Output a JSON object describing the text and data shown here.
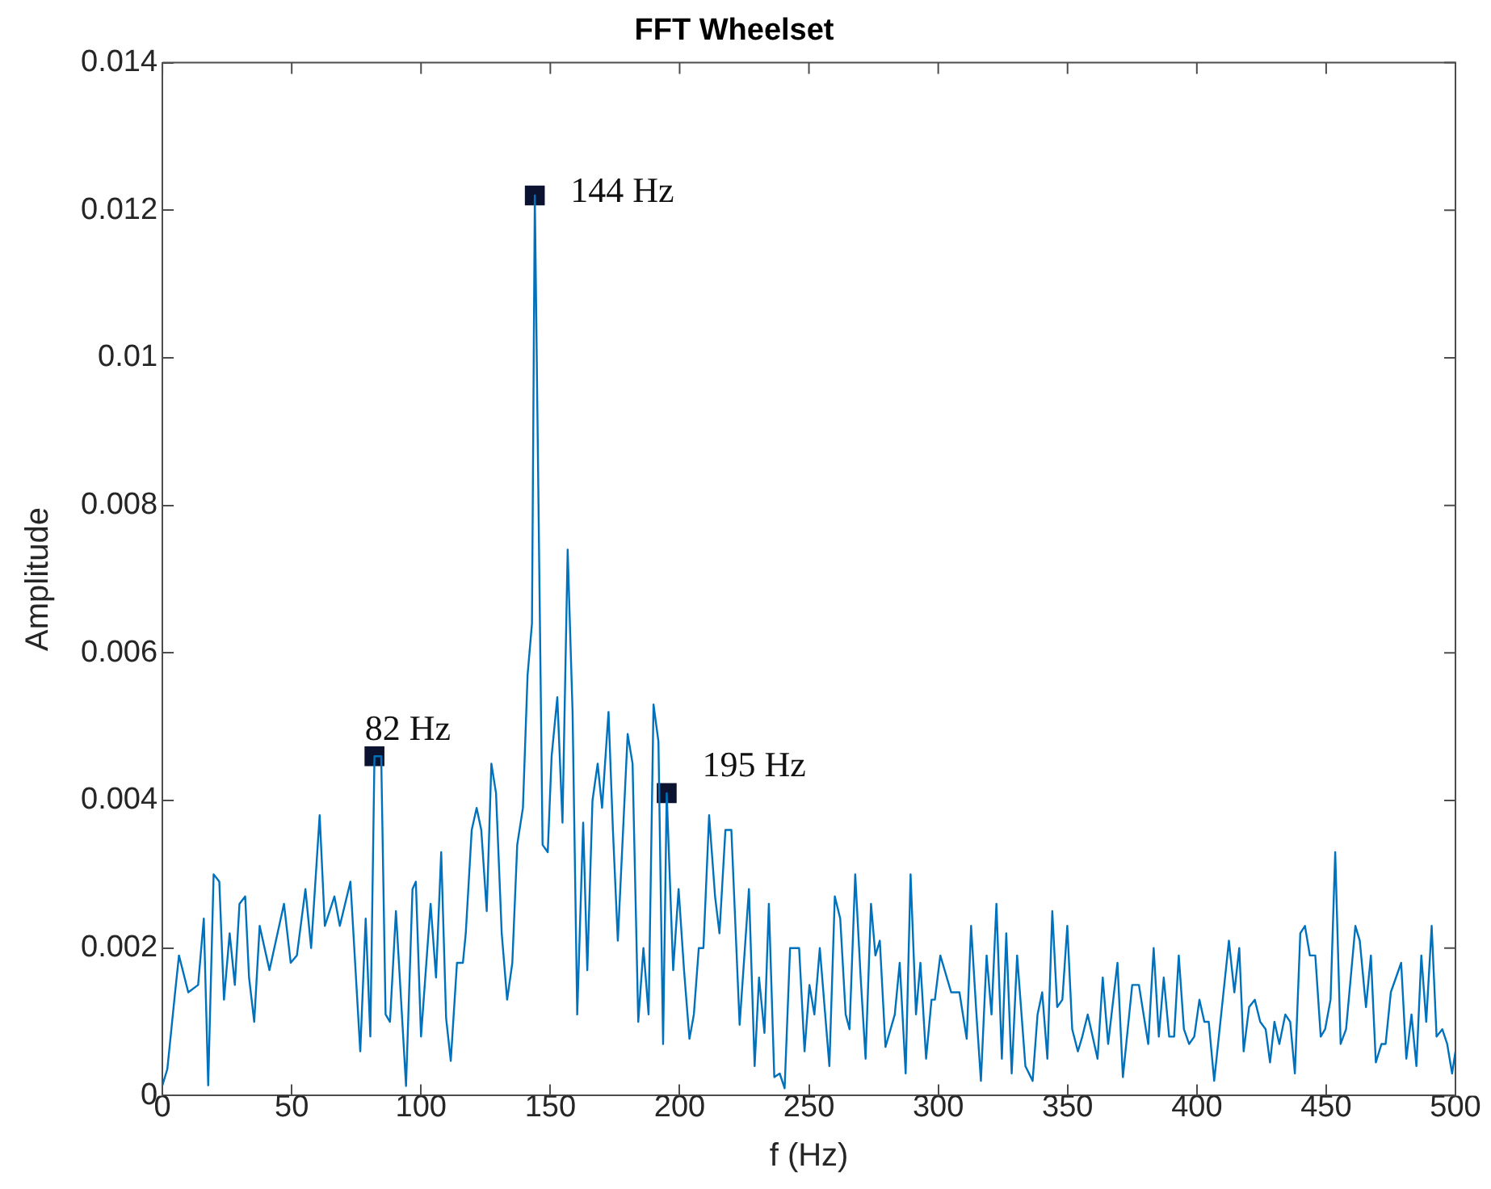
{
  "chart_data": {
    "type": "line",
    "title": "FFT Wheelset",
    "xlabel": "f (Hz)",
    "ylabel": "Amplitude",
    "xlim": [
      0,
      500
    ],
    "xticks": [
      0,
      50,
      100,
      150,
      200,
      250,
      300,
      350,
      400,
      450,
      500
    ],
    "ylim": [
      0,
      0.014
    ],
    "yticks": [
      0,
      0.002,
      0.004,
      0.006,
      0.008,
      0.01,
      0.012,
      0.014
    ],
    "grid": false,
    "legend": false,
    "series": [
      {
        "type": "line",
        "marker": "none",
        "color": "#0072bd",
        "x": [
          0,
          1.9,
          4.9,
          6.4,
          10,
          13.8,
          16,
          17.7,
          19.8,
          22,
          23.8,
          26,
          28,
          29.8,
          32,
          33.5,
          35.5,
          37.6,
          41.4,
          47,
          49.6,
          52,
          55.3,
          57.5,
          60.8,
          62.8,
          66.5,
          68.6,
          72.7,
          76.5,
          78.6,
          80.4,
          82,
          84.6,
          86.3,
          88,
          90.3,
          94.2,
          96.7,
          98,
          100,
          103.7,
          105.8,
          107.8,
          109.7,
          111.5,
          113.9,
          116.2,
          117.3,
          119.6,
          121.5,
          123.3,
          125.4,
          127.2,
          129,
          131.2,
          133.3,
          135.3,
          137.2,
          139.4,
          141.2,
          142.9,
          144,
          147,
          149,
          150.5,
          152.7,
          154.7,
          156.7,
          158.6,
          160.4,
          162.7,
          164.3,
          166.3,
          168.3,
          170,
          172.5,
          174.2,
          176.1,
          179.9,
          181.8,
          184,
          186,
          188,
          189.9,
          191.8,
          193.6,
          195,
          197.5,
          199.6,
          201.7,
          203.8,
          205.5,
          207.4,
          209.2,
          211.4,
          213.7,
          215.4,
          217.7,
          220,
          223.2,
          226.8,
          229,
          230.7,
          232.8,
          234.5,
          236.6,
          238.7,
          240.6,
          242.7,
          246.2,
          248.3,
          250.2,
          252.1,
          254.2,
          257.9,
          260,
          262.1,
          264.2,
          265.7,
          267.9,
          270,
          271.9,
          274,
          275.7,
          277.4,
          279.6,
          283.2,
          285.1,
          287.4,
          289.3,
          291.4,
          293.1,
          295.3,
          297.4,
          298.7,
          300.8,
          305,
          308.2,
          311,
          312.7,
          314.6,
          316.5,
          318.7,
          320.6,
          322.5,
          324.6,
          326.3,
          328.4,
          330.5,
          333.7,
          336.5,
          338.4,
          340.2,
          342.2,
          344.1,
          346,
          348,
          349.9,
          351.8,
          354,
          355.7,
          357.8,
          361.6,
          363.6,
          365.7,
          369.3,
          371.4,
          375,
          377.6,
          381.2,
          383.3,
          385.3,
          387.2,
          389.3,
          391.2,
          393,
          395,
          397,
          399,
          401,
          402.9,
          404.6,
          406.7,
          412.4,
          414.5,
          416.4,
          418.1,
          420.2,
          422.4,
          424.5,
          426.6,
          428.3,
          430,
          431.9,
          434.2,
          436.1,
          437.9,
          440,
          441.8,
          443.7,
          445.8,
          447.9,
          449.6,
          451.7,
          453.5,
          455.6,
          457.7,
          461.3,
          463,
          465.4,
          467.3,
          469.2,
          471.4,
          473,
          475,
          479,
          481,
          483,
          484.9,
          486.8,
          488.7,
          490.8,
          492.7,
          494.9,
          496.8,
          498.7,
          500
        ],
        "values": [
          0.00014,
          0.00036,
          0.0014,
          0.0019,
          0.0014,
          0.0015,
          0.0024,
          0.00014,
          0.003,
          0.0029,
          0.0013,
          0.0022,
          0.0015,
          0.0026,
          0.0027,
          0.0016,
          0.001,
          0.0023,
          0.0017,
          0.0026,
          0.0018,
          0.0019,
          0.0028,
          0.002,
          0.0038,
          0.0023,
          0.0027,
          0.0023,
          0.0029,
          0.0006,
          0.0024,
          0.0008,
          0.0046,
          0.0046,
          0.0011,
          0.001,
          0.0025,
          0.00013,
          0.0028,
          0.0029,
          0.0008,
          0.0026,
          0.0016,
          0.0033,
          0.00105,
          0.00047,
          0.0018,
          0.0018,
          0.0022,
          0.0036,
          0.0039,
          0.0036,
          0.0025,
          0.0045,
          0.0041,
          0.0022,
          0.0013,
          0.0018,
          0.0034,
          0.0039,
          0.0057,
          0.0064,
          0.0122,
          0.0034,
          0.0033,
          0.0046,
          0.0054,
          0.0037,
          0.0074,
          0.0052,
          0.0011,
          0.0037,
          0.0017,
          0.004,
          0.0045,
          0.0039,
          0.0052,
          0.0036,
          0.0021,
          0.0049,
          0.0045,
          0.001,
          0.002,
          0.0011,
          0.0053,
          0.0048,
          0.0007,
          0.0041,
          0.0017,
          0.0028,
          0.0017,
          0.00077,
          0.0011,
          0.002,
          0.002,
          0.0038,
          0.0027,
          0.0022,
          0.0036,
          0.0036,
          0.00096,
          0.0028,
          0.0004,
          0.0016,
          0.00085,
          0.0026,
          0.00025,
          0.0003,
          0.0001,
          0.002,
          0.002,
          0.0006,
          0.0015,
          0.0011,
          0.002,
          0.0004,
          0.0027,
          0.0024,
          0.0011,
          0.0009,
          0.003,
          0.0016,
          0.0005,
          0.0026,
          0.0019,
          0.0021,
          0.00066,
          0.0011,
          0.0018,
          0.0003,
          0.003,
          0.0011,
          0.0018,
          0.0005,
          0.0013,
          0.0013,
          0.0019,
          0.0014,
          0.0014,
          0.00077,
          0.0023,
          0.0012,
          0.0002,
          0.0019,
          0.0011,
          0.0026,
          0.0005,
          0.0022,
          0.0003,
          0.0019,
          0.0004,
          0.0002,
          0.0011,
          0.0014,
          0.0005,
          0.0025,
          0.0012,
          0.0013,
          0.0023,
          0.0009,
          0.0006,
          0.0008,
          0.0011,
          0.0005,
          0.0016,
          0.0007,
          0.0018,
          0.00025,
          0.0015,
          0.0015,
          0.0007,
          0.002,
          0.0008,
          0.0016,
          0.0008,
          0.0008,
          0.0019,
          0.0009,
          0.0007,
          0.0008,
          0.0013,
          0.001,
          0.001,
          0.0002,
          0.0021,
          0.0014,
          0.002,
          0.0006,
          0.0012,
          0.0013,
          0.001,
          0.0009,
          0.00045,
          0.001,
          0.0007,
          0.0011,
          0.001,
          0.0003,
          0.0022,
          0.0023,
          0.0019,
          0.0019,
          0.0008,
          0.0009,
          0.0013,
          0.0033,
          0.0007,
          0.0009,
          0.0023,
          0.0021,
          0.0012,
          0.0019,
          0.00045,
          0.0007,
          0.0007,
          0.0014,
          0.0018,
          0.0005,
          0.0011,
          0.0004,
          0.0019,
          0.001,
          0.0023,
          0.0008,
          0.0009,
          0.0007,
          0.0003,
          0.0006
        ]
      },
      {
        "type": "scatter",
        "marker": "square",
        "color": "#0b1330",
        "x": [
          82,
          144,
          195
        ],
        "values": [
          0.0046,
          0.0122,
          0.0041
        ]
      }
    ],
    "annotations": [
      {
        "text": "82 Hz",
        "x": 82,
        "y": 0.0046
      },
      {
        "text": "144 Hz",
        "x": 144,
        "y": 0.0122
      },
      {
        "text": "195 Hz",
        "x": 195,
        "y": 0.0041
      }
    ]
  }
}
